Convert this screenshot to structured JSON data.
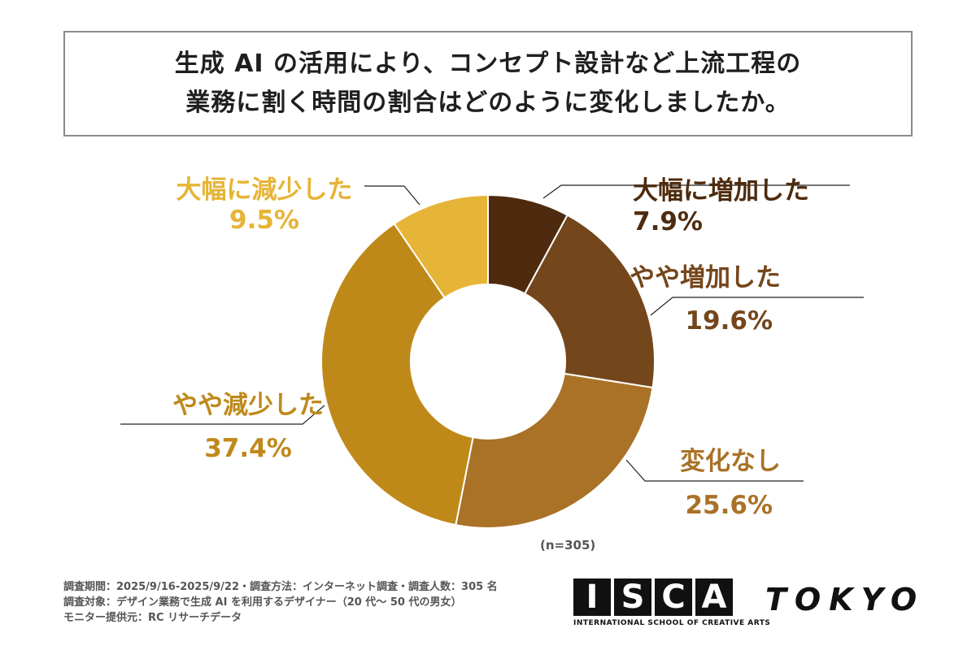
{
  "title": {
    "line1": "生成 AI の活用により、コンセプト設計など上流工程の",
    "line2": "業務に割く時間の割合はどのように変化しましたか。"
  },
  "chart_data": {
    "type": "pie",
    "donut": true,
    "categories": [
      "大幅に増加した",
      "やや増加した",
      "変化なし",
      "やや減少した",
      "大幅に減少した"
    ],
    "values": [
      7.9,
      19.6,
      25.6,
      37.4,
      9.5
    ],
    "value_labels": [
      "7.9%",
      "19.6%",
      "25.6%",
      "37.4%",
      "9.5%"
    ],
    "colors": [
      "#4e2b0e",
      "#74461b",
      "#a97227",
      "#bf891a",
      "#e6b436"
    ],
    "note": "(n=305)"
  },
  "footer": {
    "line1": "調査期間：2025/9/16-2025/9/22・調査方法：インターネット調査・調査人数：305 名",
    "line2": "調査対象：デザイン業務で生成 AI を利用するデザイナー（20 代～ 50 代の男女）",
    "line3": "モニター提供元：RC リサーチデータ"
  },
  "logo": {
    "letters": [
      "I",
      "S",
      "C",
      "A"
    ],
    "word": "TOKYO",
    "subtitle": "INTERNATIONAL SCHOOL OF CREATIVE ARTS"
  }
}
